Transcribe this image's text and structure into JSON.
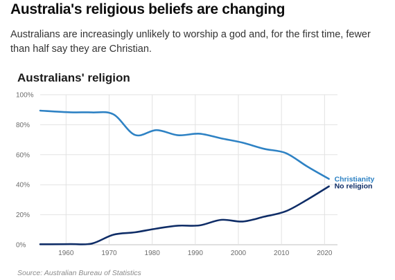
{
  "headline": "Australia's religious beliefs are changing",
  "standfirst": "Australians are increasingly unlikely to worship a god and, for the first time, fewer than half say they are Christian.",
  "source": "Source: Australian Bureau of Statistics",
  "colors": {
    "christianity": "#2e82c4",
    "no_religion": "#0f2d67",
    "grid": "#e2e2e2",
    "axis": "#bfbfbf"
  },
  "chart_data": {
    "type": "line",
    "title": "Australians' religion",
    "xlabel": "",
    "ylabel": "",
    "xlim": [
      1954,
      2023
    ],
    "ylim": [
      0,
      100
    ],
    "x_ticks": [
      1960,
      1970,
      1980,
      1990,
      2000,
      2010,
      2020
    ],
    "y_ticks": [
      0,
      20,
      40,
      60,
      80,
      100
    ],
    "y_tick_labels": [
      "0%",
      "20%",
      "40%",
      "60%",
      "80%",
      "100%"
    ],
    "grid": true,
    "legend": "direct labels at right end of lines",
    "series": [
      {
        "name": "Christianity",
        "color": "#2e82c4",
        "x": [
          1954,
          1961,
          1966,
          1971,
          1976,
          1981,
          1986,
          1991,
          1996,
          2001,
          2006,
          2011,
          2016,
          2021
        ],
        "values": [
          89.4,
          88.3,
          88.2,
          86.9,
          73.2,
          76.4,
          73.0,
          74.0,
          70.9,
          68.0,
          63.9,
          61.1,
          52.1,
          43.9
        ]
      },
      {
        "name": "No religion",
        "color": "#0f2d67",
        "x": [
          1954,
          1961,
          1966,
          1971,
          1976,
          1981,
          1986,
          1991,
          1996,
          2001,
          2006,
          2011,
          2016,
          2021
        ],
        "values": [
          0.3,
          0.4,
          0.8,
          6.7,
          8.3,
          10.8,
          12.7,
          12.9,
          16.6,
          15.5,
          18.7,
          22.3,
          30.1,
          38.9
        ]
      }
    ]
  }
}
